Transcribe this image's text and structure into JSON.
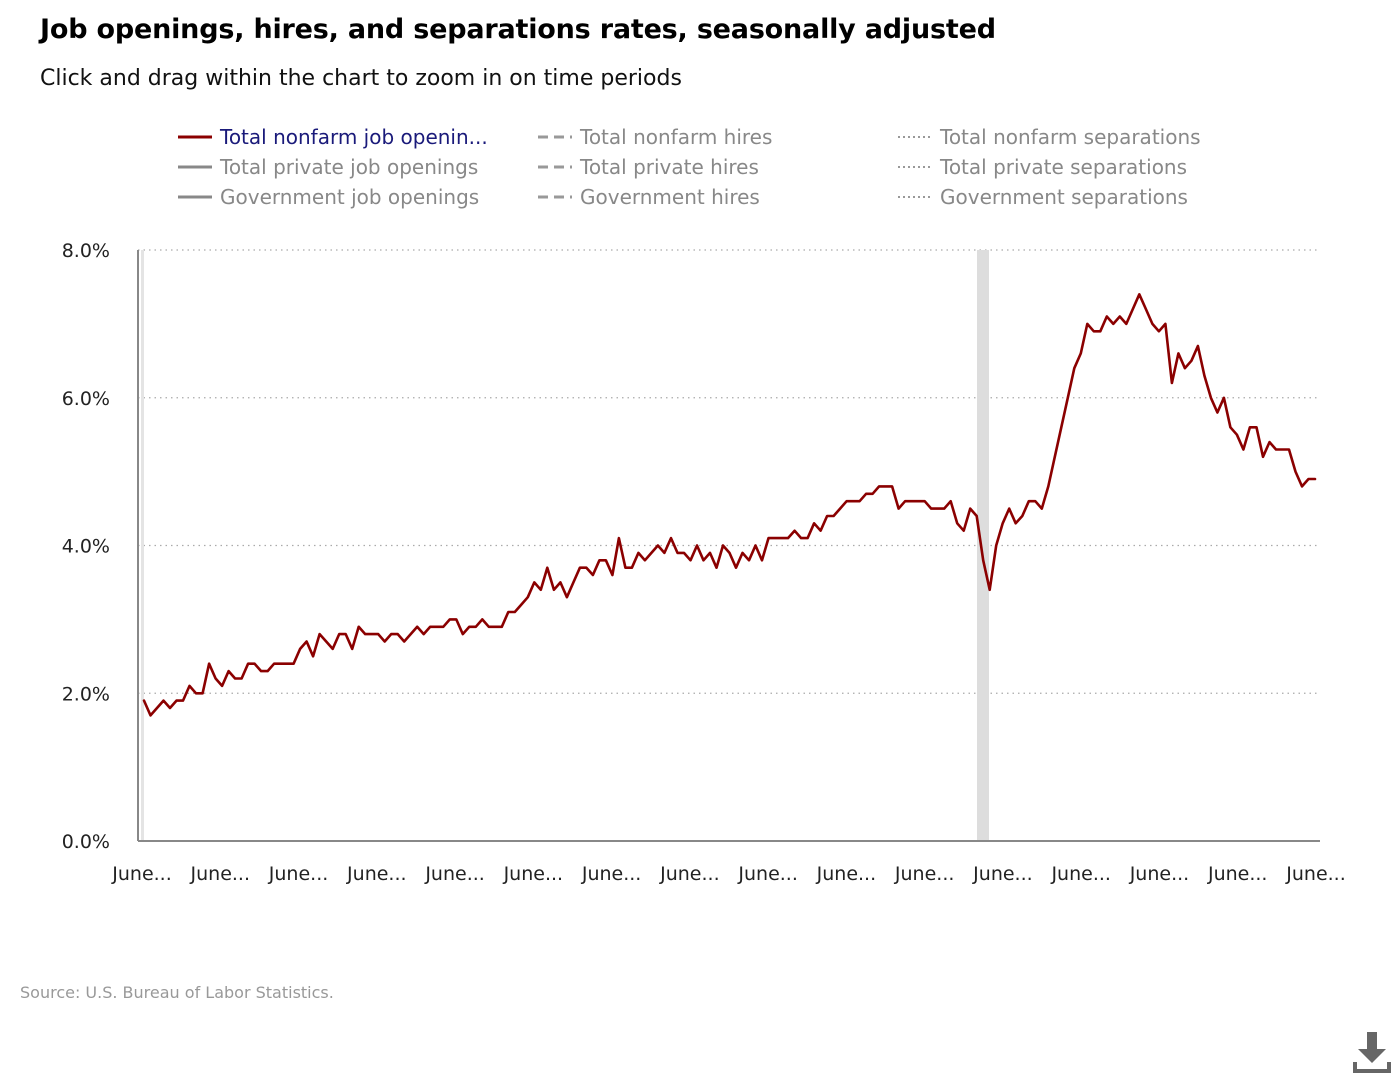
{
  "header": {
    "title": "Job openings, hires, and separations rates, seasonally adjusted",
    "subtitle": "Click and drag within the chart to zoom in on time periods"
  },
  "legend": [
    {
      "label": "Total nonfarm job openin...",
      "style": "solid",
      "color": "#8b0000",
      "active": true
    },
    {
      "label": "Total nonfarm hires",
      "style": "dashed",
      "color": "#999999",
      "active": false
    },
    {
      "label": "Total nonfarm separations",
      "style": "dotted",
      "color": "#999999",
      "active": false
    },
    {
      "label": "Total private job openings",
      "style": "solid",
      "color": "#888888",
      "active": false
    },
    {
      "label": "Total private hires",
      "style": "dashed",
      "color": "#999999",
      "active": false
    },
    {
      "label": "Total private separations",
      "style": "dotted",
      "color": "#999999",
      "active": false
    },
    {
      "label": "Government job openings",
      "style": "solid",
      "color": "#888888",
      "active": false
    },
    {
      "label": "Government hires",
      "style": "dashed",
      "color": "#999999",
      "active": false
    },
    {
      "label": "Government separations",
      "style": "dotted",
      "color": "#999999",
      "active": false
    }
  ],
  "footer": {
    "source": "Source: U.S. Bureau of Labor Statistics."
  },
  "icons": {
    "download": "download-icon"
  },
  "chart_data": {
    "type": "line",
    "title": "Job openings, hires, and separations rates, seasonally adjusted",
    "ylim": [
      0,
      8
    ],
    "yticks": [
      0,
      2,
      4,
      6,
      8
    ],
    "ytick_labels": [
      "0.0%",
      "2.0%",
      "4.0%",
      "6.0%",
      "8.0%"
    ],
    "xtick_labels": [
      "June...",
      "June...",
      "June...",
      "June...",
      "June...",
      "June...",
      "June...",
      "June...",
      "June...",
      "June...",
      "June...",
      "June...",
      "June...",
      "June...",
      "June...",
      "June..."
    ],
    "grid": true,
    "recession_shading": true,
    "series": [
      {
        "name": "Total nonfarm job openin...",
        "color": "#8b0000",
        "values": [
          1.9,
          1.7,
          1.8,
          1.9,
          1.8,
          1.9,
          1.9,
          2.1,
          2.0,
          2.0,
          2.4,
          2.2,
          2.1,
          2.3,
          2.2,
          2.2,
          2.4,
          2.4,
          2.3,
          2.3,
          2.4,
          2.4,
          2.4,
          2.4,
          2.6,
          2.7,
          2.5,
          2.8,
          2.7,
          2.6,
          2.8,
          2.8,
          2.6,
          2.9,
          2.8,
          2.8,
          2.8,
          2.7,
          2.8,
          2.8,
          2.7,
          2.8,
          2.9,
          2.8,
          2.9,
          2.9,
          2.9,
          3.0,
          3.0,
          2.8,
          2.9,
          2.9,
          3.0,
          2.9,
          2.9,
          2.9,
          3.1,
          3.1,
          3.2,
          3.3,
          3.5,
          3.4,
          3.7,
          3.4,
          3.5,
          3.3,
          3.5,
          3.7,
          3.7,
          3.6,
          3.8,
          3.8,
          3.6,
          4.1,
          3.7,
          3.7,
          3.9,
          3.8,
          3.9,
          4.0,
          3.9,
          4.1,
          3.9,
          3.9,
          3.8,
          4.0,
          3.8,
          3.9,
          3.7,
          4.0,
          3.9,
          3.7,
          3.9,
          3.8,
          4.0,
          3.8,
          4.1,
          4.1,
          4.1,
          4.1,
          4.2,
          4.1,
          4.1,
          4.3,
          4.2,
          4.4,
          4.4,
          4.5,
          4.6,
          4.6,
          4.6,
          4.7,
          4.7,
          4.8,
          4.8,
          4.8,
          4.5,
          4.6,
          4.6,
          4.6,
          4.6,
          4.5,
          4.5,
          4.5,
          4.6,
          4.3,
          4.2,
          4.5,
          4.4,
          3.8,
          3.4,
          4.0,
          4.3,
          4.5,
          4.3,
          4.4,
          4.6,
          4.6,
          4.5,
          4.8,
          5.2,
          5.6,
          6.0,
          6.4,
          6.6,
          7.0,
          6.9,
          6.9,
          7.1,
          7.0,
          7.1,
          7.0,
          7.2,
          7.4,
          7.2,
          7.0,
          6.9,
          7.0,
          6.2,
          6.6,
          6.4,
          6.5,
          6.7,
          6.3,
          6.0,
          5.8,
          6.0,
          5.6,
          5.5,
          5.3,
          5.6,
          5.6,
          5.2,
          5.4,
          5.3,
          5.3,
          5.3,
          5.0,
          4.8,
          4.9,
          4.9
        ]
      }
    ]
  }
}
